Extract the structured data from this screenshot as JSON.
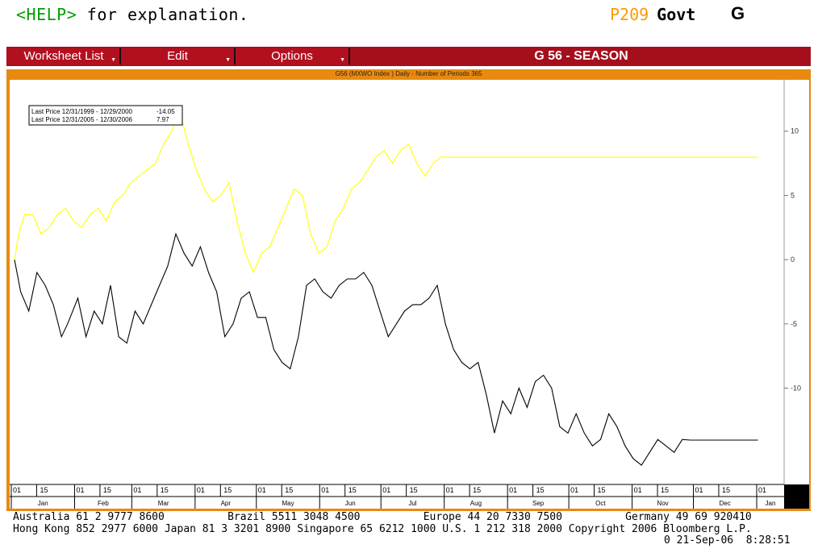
{
  "header": {
    "help": "<HELP>",
    "help_rest": " for explanation.",
    "page": "P209",
    "market": "Govt",
    "key": "G"
  },
  "menu": {
    "worksheet": "Worksheet List",
    "edit": "Edit",
    "options": "Options",
    "title": "G 56 - SEASON"
  },
  "chart_data": {
    "type": "line",
    "title": "G56 (MXWO Index ) Daily - Number of Periods 365",
    "ylim": [
      -17.5,
      14
    ],
    "yticks": [
      10,
      5,
      0,
      -5,
      -10
    ],
    "grid": false,
    "legend": [
      {
        "label": "Last Price 12/31/1999 - 12/29/2000",
        "value": "-14.05",
        "color": "#000000"
      },
      {
        "label": "Last Price 12/31/2005 - 12/30/2006",
        "value": "7.97",
        "color": "#ffff00"
      }
    ],
    "months": [
      "Jan",
      "Feb",
      "Mar",
      "Apr",
      "May",
      "Jun",
      "Jul",
      "Aug",
      "Sep",
      "Oct",
      "Nov",
      "Dec",
      "Jan"
    ],
    "day_labels": [
      "01",
      "15"
    ],
    "series": [
      {
        "color": "#000000",
        "x": [
          0,
          3,
          7,
          11,
          15,
          19,
          23,
          26,
          31,
          35,
          39,
          43,
          47,
          51,
          55,
          59,
          63,
          67,
          71,
          75,
          79,
          83,
          87,
          91,
          95,
          99,
          103,
          107,
          111,
          115,
          119,
          123,
          127,
          131,
          135,
          139,
          143,
          147,
          151,
          155,
          159,
          163,
          167,
          171,
          175,
          179,
          183,
          187,
          191,
          195,
          199,
          203,
          207,
          211,
          215,
          219,
          223,
          227,
          231,
          235,
          239,
          243,
          247,
          251,
          255,
          259,
          263,
          267,
          271,
          275,
          279,
          283,
          287,
          291,
          295,
          299,
          303,
          307,
          311,
          315,
          319,
          323,
          327,
          331,
          335,
          339,
          343,
          347,
          351,
          355,
          359,
          364
        ],
        "y": [
          0,
          -2.5,
          -4,
          -1,
          -2,
          -3.5,
          -6,
          -5,
          -3,
          -6,
          -4,
          -5,
          -2,
          -6,
          -6.5,
          -4,
          -5,
          -3.5,
          -2,
          -0.5,
          2,
          0.5,
          -0.5,
          1,
          -1,
          -2.5,
          -6,
          -5,
          -3,
          -2.5,
          -4.5,
          -4.5,
          -7,
          -8,
          -8.5,
          -6,
          -2,
          -1.5,
          -2.5,
          -3,
          -2,
          -1.5,
          -1.5,
          -1,
          -2,
          -4,
          -6,
          -5,
          -4,
          -3.5,
          -3.5,
          -3,
          -2,
          -5,
          -7,
          -8,
          -8.5,
          -8,
          -10.5,
          -13.5,
          -11,
          -12,
          -10,
          -11.5,
          -9.5,
          -9,
          -10,
          -13,
          -13.5,
          -12,
          -13.5,
          -14.5,
          -14,
          -12,
          -13,
          -14.5,
          -15.5,
          -16,
          -15,
          -14,
          -14.5,
          -15,
          -14,
          -14.05,
          -14.05,
          -14.05,
          -14.05,
          -14.05,
          -14.05,
          -14.05,
          -14.05,
          -14.05
        ]
      },
      {
        "color": "#ffff00",
        "x": [
          0,
          2,
          5,
          9,
          13,
          17,
          21,
          25,
          29,
          33,
          37,
          41,
          45,
          49,
          53,
          57,
          61,
          65,
          69,
          73,
          77,
          81,
          85,
          89,
          93,
          97,
          101,
          105,
          109,
          113,
          117,
          121,
          125,
          129,
          133,
          137,
          141,
          145,
          149,
          153,
          157,
          161,
          165,
          169,
          173,
          177,
          181,
          185,
          189,
          193,
          197,
          201,
          205,
          209,
          213,
          217,
          221,
          225,
          229,
          233,
          237,
          241,
          245,
          249,
          253,
          257,
          259,
          263,
          267,
          271,
          275,
          279,
          283,
          287,
          291,
          295,
          299,
          303,
          307,
          311,
          315,
          319,
          323,
          327,
          331,
          335,
          339,
          343,
          347,
          351,
          355,
          359,
          364
        ],
        "y": [
          0,
          2,
          3.5,
          3.5,
          2,
          2.5,
          3.5,
          4,
          3,
          2.5,
          3.5,
          4,
          3,
          4.5,
          5,
          6,
          6.5,
          7,
          7.5,
          9,
          10,
          11.5,
          9,
          7,
          5.5,
          4.5,
          5,
          6,
          3,
          0.5,
          -1,
          0.5,
          1,
          2.5,
          4,
          5.5,
          5,
          2,
          0.5,
          1,
          3,
          4,
          5.5,
          6,
          7,
          8,
          8.5,
          7.5,
          8.5,
          9,
          7.5,
          6.5,
          7.5,
          8,
          7.97,
          7.97,
          7.97,
          7.97,
          7.97,
          7.97,
          7.97,
          7.97,
          7.97,
          7.97,
          7.97,
          7.97,
          7.97,
          7.97,
          7.97,
          7.97,
          7.97,
          7.97,
          7.97,
          7.97,
          7.97,
          7.97,
          7.97,
          7.97,
          7.97,
          7.97,
          7.97,
          7.97,
          7.97,
          7.97,
          7.97,
          7.97,
          7.97,
          7.97,
          7.97,
          7.97,
          7.97,
          7.97,
          7.97
        ]
      }
    ]
  },
  "footer": {
    "line1": "Australia 61 2 9777 8600          Brazil 5511 3048 4500          Europe 44 20 7330 7500          Germany 49 69 920410",
    "line2": "Hong Kong 852 2977 6000 Japan 81 3 3201 8900 Singapore 65 6212 1000 U.S. 1 212 318 2000 Copyright 2006 Bloomberg L.P.",
    "line3": "0 21-Sep-06  8:28:51"
  }
}
